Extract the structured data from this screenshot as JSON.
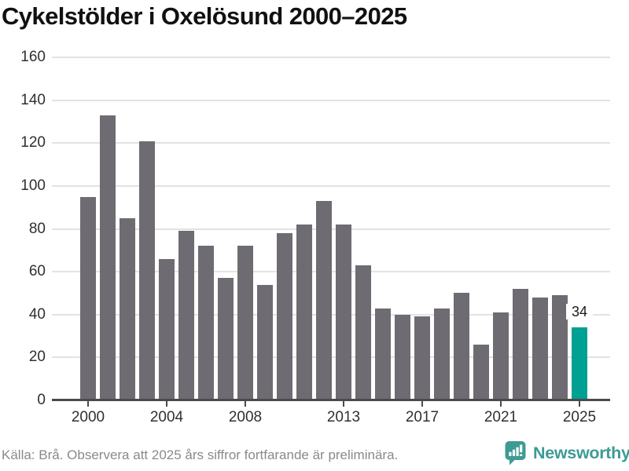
{
  "title": "Cykelstölder i Oxelösund 2000–2025",
  "chart_data": {
    "type": "bar",
    "title": "Cykelstölder i Oxelösund 2000–2025",
    "categories": [
      2000,
      2001,
      2002,
      2003,
      2004,
      2005,
      2006,
      2007,
      2008,
      2009,
      2010,
      2011,
      2012,
      2013,
      2014,
      2015,
      2016,
      2017,
      2018,
      2019,
      2020,
      2021,
      2022,
      2023,
      2024,
      2025
    ],
    "values": [
      95,
      133,
      85,
      121,
      66,
      79,
      72,
      57,
      72,
      54,
      78,
      82,
      93,
      82,
      63,
      43,
      40,
      39,
      43,
      50,
      26,
      41,
      52,
      48,
      49,
      34
    ],
    "xlabel": "",
    "ylabel": "",
    "ylim": [
      0,
      160
    ],
    "yticks": [
      0,
      20,
      40,
      60,
      80,
      100,
      120,
      140,
      160
    ],
    "xtick_labels": [
      2000,
      2004,
      2008,
      2013,
      2017,
      2021,
      2025
    ],
    "grid": true,
    "legend_position": "none",
    "bar_color": "#6e6c72",
    "gridline_color": "#e3e3e3",
    "axis_color": "#4a4a4a",
    "highlight": {
      "year": 2025,
      "value": 34,
      "label": "34",
      "color": "#00a092"
    }
  },
  "footer": {
    "source": "Källa: Brå. Observera att 2025 års siffror fortfarande är preliminära."
  },
  "branding": {
    "logo_text": "Newsworthy",
    "logo_icon": "bar-chart-speech-bubble-icon",
    "logo_color": "#3d9b94"
  }
}
